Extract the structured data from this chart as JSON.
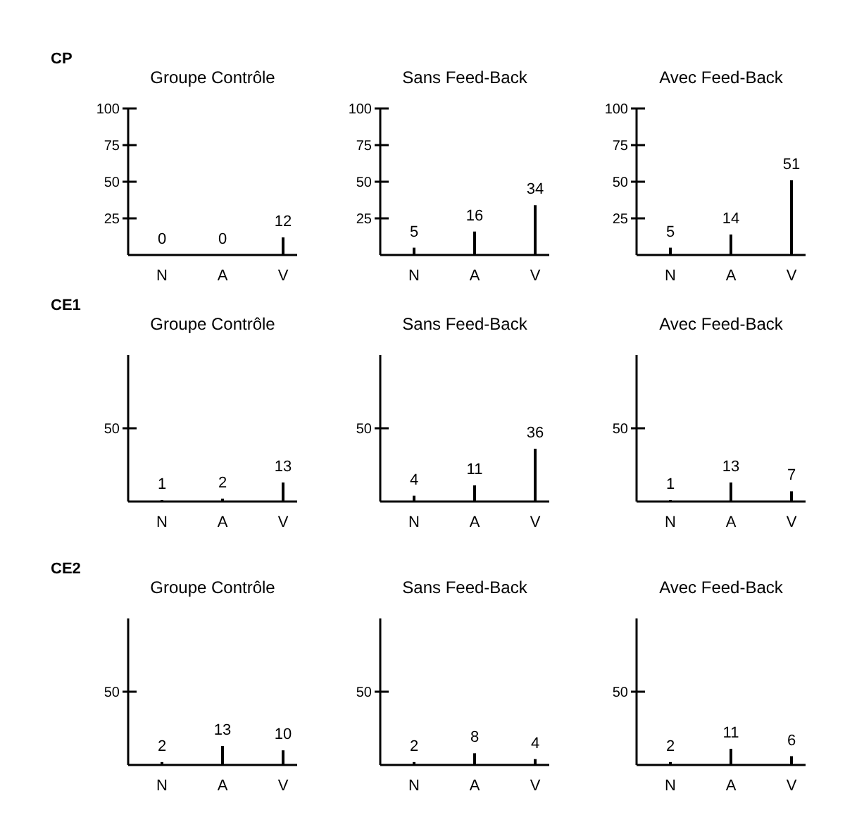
{
  "chart_data": [
    {
      "type": "bar",
      "title": "Groupe Contrôle",
      "annotations": [
        "CP"
      ],
      "categories": [
        "N",
        "A",
        "V"
      ],
      "values": [
        0,
        0,
        12
      ],
      "color": "#000000",
      "ylim": [
        0,
        100
      ],
      "yticks": [
        25,
        50,
        75,
        100
      ],
      "data_labels": true
    },
    {
      "type": "bar",
      "title": "Sans Feed-Back",
      "categories": [
        "N",
        "A",
        "V"
      ],
      "values": [
        5,
        16,
        34
      ],
      "color": "#000000",
      "ylim": [
        0,
        100
      ],
      "yticks": [
        25,
        50,
        75,
        100
      ],
      "data_labels": true
    },
    {
      "type": "bar",
      "title": "Avec Feed-Back",
      "categories": [
        "N",
        "A",
        "V"
      ],
      "values": [
        5,
        14,
        51
      ],
      "color": "#000000",
      "ylim": [
        0,
        100
      ],
      "yticks": [
        25,
        50,
        75,
        100
      ],
      "data_labels": true
    },
    {
      "type": "bar",
      "title": "Groupe Contrôle",
      "annotations": [
        "CE1"
      ],
      "categories": [
        "N",
        "A",
        "V"
      ],
      "values": [
        1,
        2,
        13
      ],
      "color": "#000000",
      "ylim": [
        0,
        100
      ],
      "yticks": [
        50
      ],
      "data_labels": true
    },
    {
      "type": "bar",
      "title": "Sans Feed-Back",
      "categories": [
        "N",
        "A",
        "V"
      ],
      "values": [
        4,
        11,
        36
      ],
      "color": "#000000",
      "ylim": [
        0,
        100
      ],
      "yticks": [
        50
      ],
      "data_labels": true
    },
    {
      "type": "bar",
      "title": "Avec Feed-Back",
      "categories": [
        "N",
        "A",
        "V"
      ],
      "values": [
        1,
        13,
        7
      ],
      "color": "#000000",
      "ylim": [
        0,
        100
      ],
      "yticks": [
        50
      ],
      "data_labels": true
    },
    {
      "type": "bar",
      "title": "Groupe Contrôle",
      "annotations": [
        "CE2"
      ],
      "categories": [
        "N",
        "A",
        "V"
      ],
      "values": [
        2,
        13,
        10
      ],
      "color": "#000000",
      "ylim": [
        0,
        100
      ],
      "yticks": [
        50
      ],
      "data_labels": true
    },
    {
      "type": "bar",
      "title": "Sans Feed-Back",
      "categories": [
        "N",
        "A",
        "V"
      ],
      "values": [
        2,
        8,
        4
      ],
      "color": "#000000",
      "ylim": [
        0,
        100
      ],
      "yticks": [
        50
      ],
      "data_labels": true
    },
    {
      "type": "bar",
      "title": "Avec Feed-Back",
      "categories": [
        "N",
        "A",
        "V"
      ],
      "values": [
        2,
        11,
        6
      ],
      "color": "#000000",
      "ylim": [
        0,
        100
      ],
      "yticks": [
        50
      ],
      "data_labels": true
    }
  ]
}
